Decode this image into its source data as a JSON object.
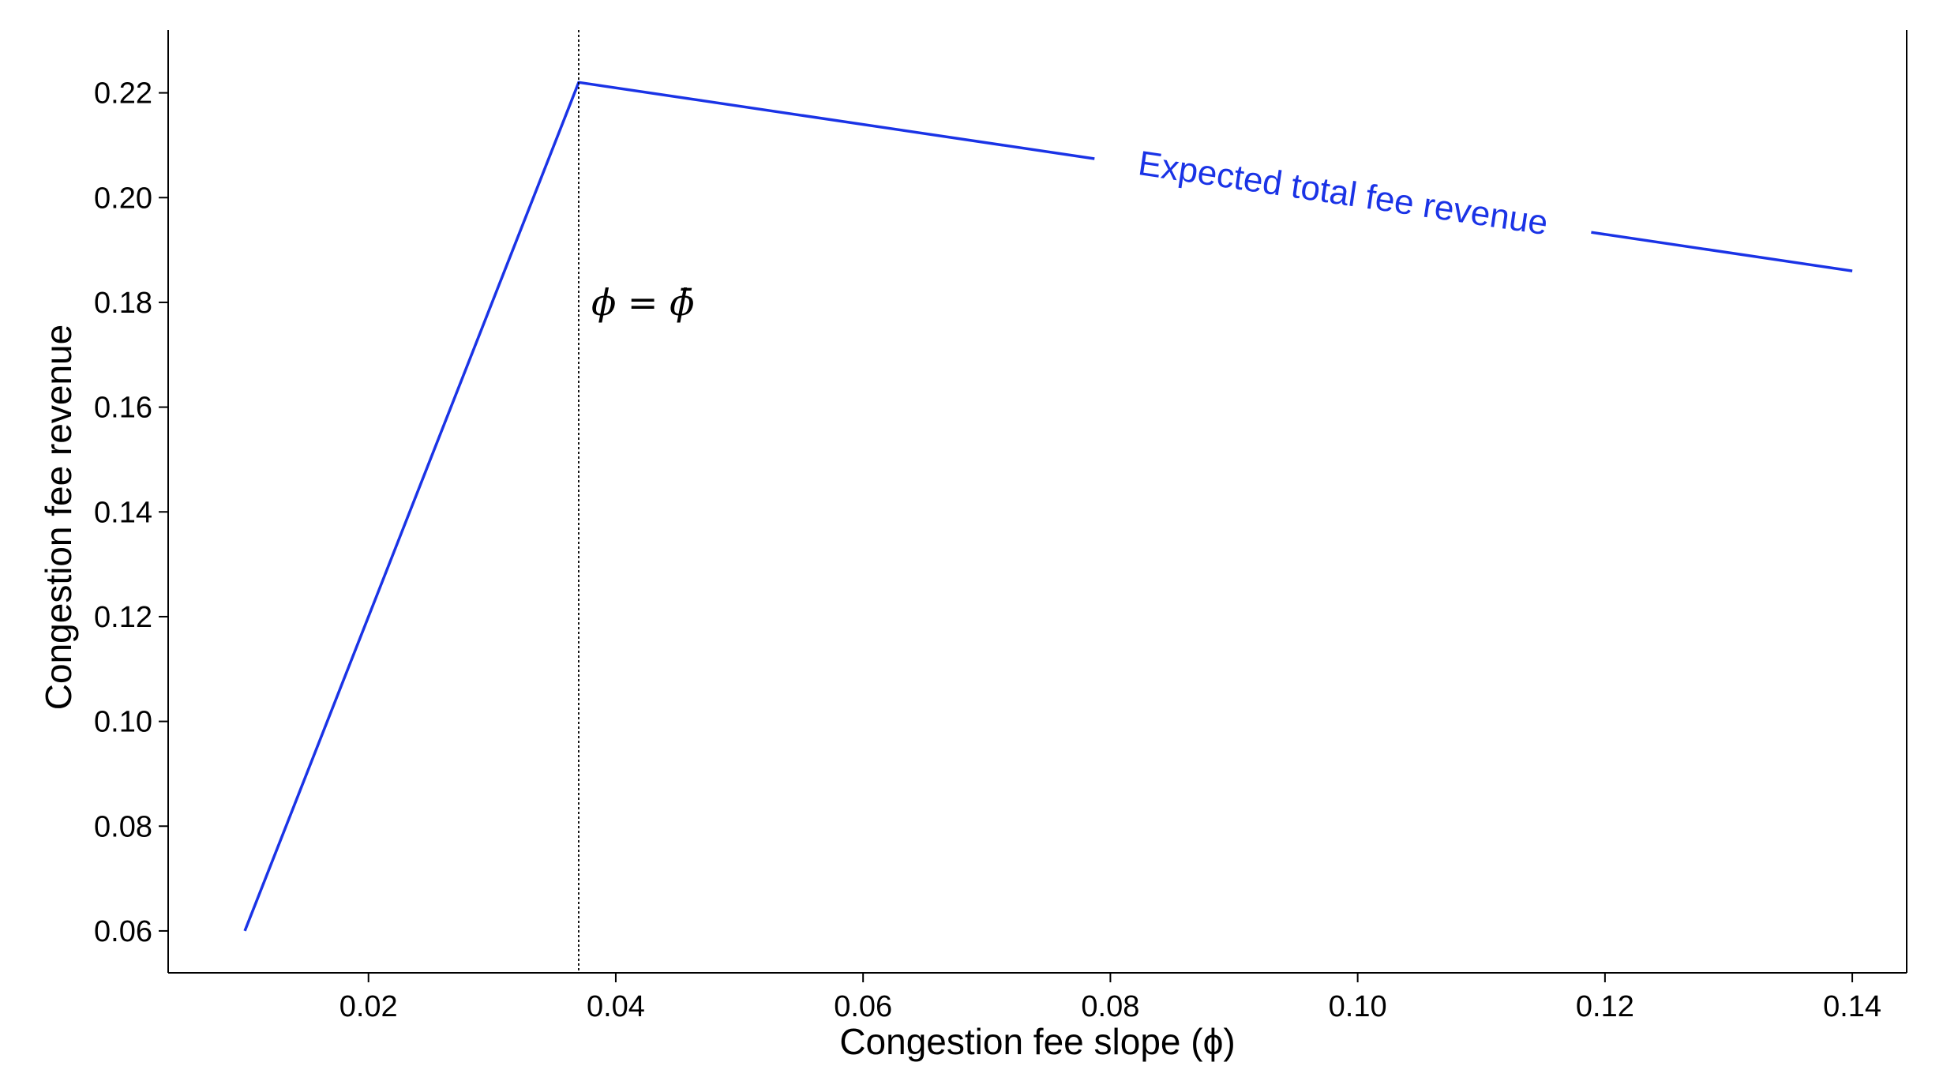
{
  "chart_data": {
    "type": "line",
    "xlabel": "Congestion fee slope (ϕ)",
    "ylabel": "Congestion fee revenue",
    "xlim": [
      0.0038,
      0.1444
    ],
    "ylim": [
      0.052,
      0.232
    ],
    "x_ticks": [
      "0.02",
      "0.04",
      "0.06",
      "0.08",
      "0.10",
      "0.12",
      "0.14"
    ],
    "y_ticks": [
      "0.06",
      "0.08",
      "0.10",
      "0.12",
      "0.14",
      "0.16",
      "0.18",
      "0.20",
      "0.22"
    ],
    "grid": false,
    "series": [
      {
        "name": "Expected total fee revenue",
        "color": "#1a33e6",
        "x": [
          0.01,
          0.037,
          0.14
        ],
        "y": [
          0.06,
          0.222,
          0.186
        ]
      }
    ],
    "annotations": [
      {
        "type": "vline",
        "x": 0.037,
        "label": "ϕ = ϕ̄",
        "style": "dotted",
        "color": "#000000"
      }
    ]
  }
}
